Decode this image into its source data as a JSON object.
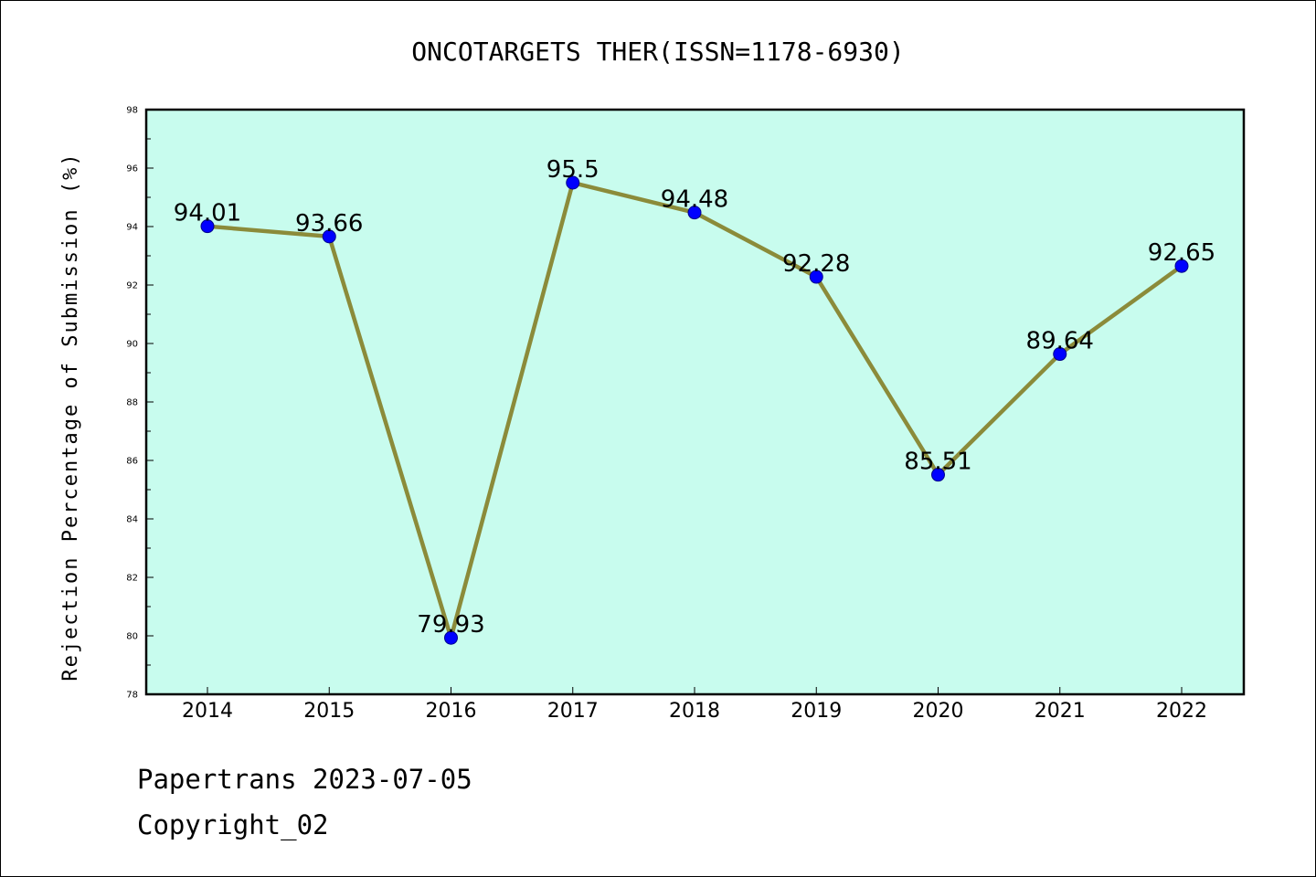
{
  "chart_data": {
    "type": "line",
    "title": "ONCOTARGETS THER(ISSN=1178-6930)",
    "xlabel": "",
    "ylabel": "Rejection Percentage of Submission (%)",
    "categories": [
      "2014",
      "2015",
      "2016",
      "2017",
      "2018",
      "2019",
      "2020",
      "2021",
      "2022"
    ],
    "values": [
      94.01,
      93.66,
      79.93,
      95.5,
      94.48,
      92.28,
      85.51,
      89.64,
      92.65
    ],
    "data_labels": [
      "94.01",
      "93.66",
      "79.93",
      "95.5",
      "94.48",
      "92.28",
      "85.51",
      "89.64",
      "92.65"
    ],
    "ylim": [
      78,
      98
    ],
    "yticks": [
      78,
      80,
      82,
      84,
      86,
      88,
      90,
      92,
      94,
      96,
      98
    ],
    "grid": false,
    "legend": "none",
    "colors": {
      "plot_background": "#c8fcee",
      "line": "#8b8b3a",
      "marker": "#0000ff",
      "marker_edge": "#00008b"
    }
  },
  "footer": {
    "line1": "Papertrans 2023-07-05",
    "line2": "Copyright_02"
  }
}
